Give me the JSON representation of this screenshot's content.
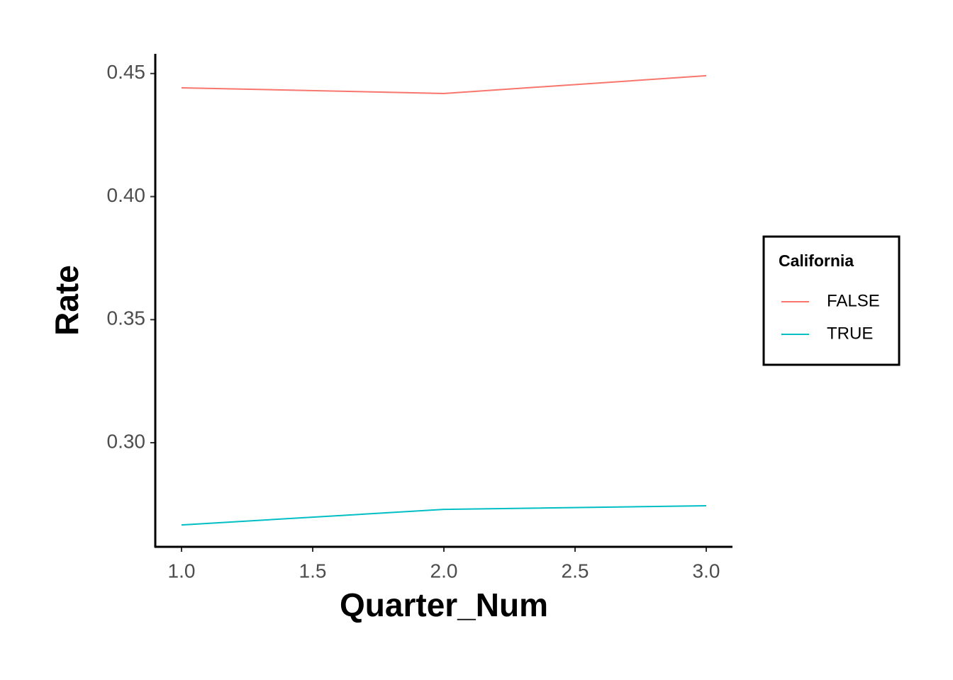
{
  "chart_data": {
    "type": "line",
    "x": [
      1,
      2,
      3
    ],
    "series": [
      {
        "name": "FALSE",
        "color": "#F8766D",
        "values": [
          0.4442,
          0.4419,
          0.4491
        ]
      },
      {
        "name": "TRUE",
        "color": "#00BFC4",
        "values": [
          0.2666,
          0.2729,
          0.2744
        ]
      }
    ],
    "xlabel": "Quarter_Num",
    "ylabel": "Rate",
    "legend_title": "California",
    "xlim": [
      0.9,
      3.1
    ],
    "xticks": [
      {
        "value": 1,
        "label": "1.0"
      },
      1.5,
      {
        "value": 2,
        "label": "2.0"
      },
      2.5,
      {
        "value": 3,
        "label": "3.0"
      }
    ],
    "ylim": [
      0.2577,
      0.458
    ],
    "yticks": [
      {
        "value": 0.3,
        "label": "0.30"
      },
      0.35,
      {
        "value": 0.4,
        "label": "0.40"
      },
      0.45
    ],
    "legend": "right",
    "grid": false
  }
}
